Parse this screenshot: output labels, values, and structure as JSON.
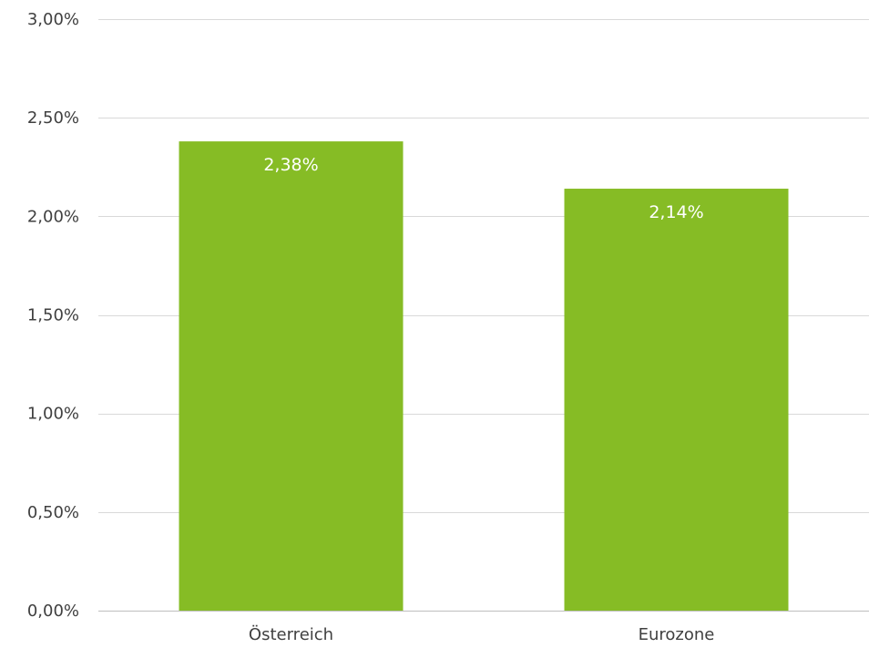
{
  "chart_data": {
    "type": "bar",
    "categories": [
      "Österreich",
      "Eurozone"
    ],
    "values": [
      2.38,
      2.14
    ],
    "data_labels": [
      "2,38%",
      "2,14%"
    ],
    "title": "",
    "xlabel": "",
    "ylabel": "",
    "ylim": [
      0,
      3
    ],
    "yticks": [
      0,
      0.5,
      1,
      1.5,
      2,
      2.5,
      3
    ],
    "ytick_labels": [
      "0,00%",
      "0,50%",
      "1,00%",
      "1,50%",
      "2,00%",
      "2,50%",
      "3,00%"
    ],
    "grid": true,
    "legend": "none",
    "bar_color": "#86bc25"
  }
}
